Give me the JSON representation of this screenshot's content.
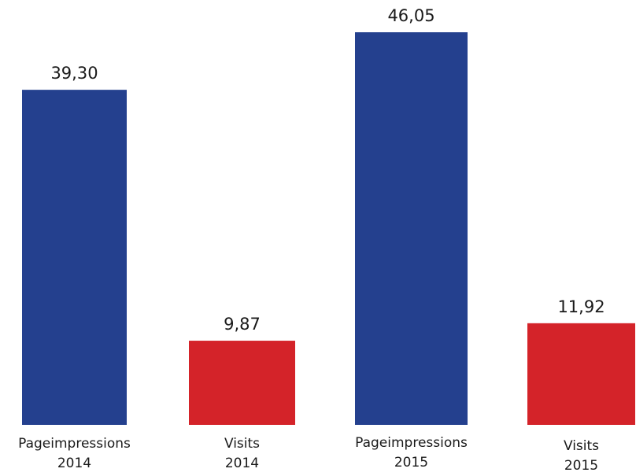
{
  "chart_data": {
    "type": "bar",
    "categories": [
      [
        "Pageimpressions",
        "2014"
      ],
      [
        "Visits",
        "2014"
      ],
      [
        "Pageimpressions",
        "2015"
      ],
      [
        "Visits",
        "2015"
      ]
    ],
    "values": [
      39.3,
      9.87,
      46.05,
      11.92
    ],
    "value_labels": [
      "39,30",
      "9,87",
      "46,05",
      "11,92"
    ],
    "colors": [
      "#24408e",
      "#d42329",
      "#24408e",
      "#d42329"
    ],
    "title": "",
    "xlabel": "",
    "ylabel": "",
    "ylim": [
      0,
      46.05
    ],
    "grid": false,
    "legend": "none"
  }
}
